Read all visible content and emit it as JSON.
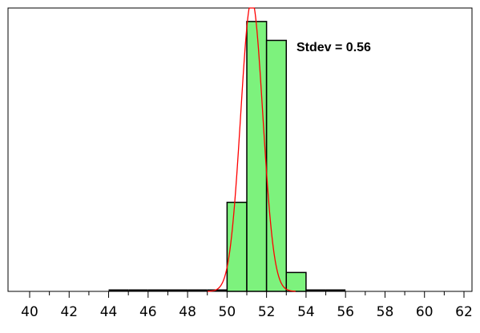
{
  "chart_data": {
    "type": "bar",
    "annotation": "Stdev = 0.56",
    "x_ticks": [
      40,
      42,
      44,
      46,
      48,
      50,
      52,
      54,
      56,
      58,
      60,
      62
    ],
    "xlim": [
      40,
      62
    ],
    "ylim": [
      0,
      1.05
    ],
    "bin_width": 1,
    "bins": [
      {
        "x0": 44,
        "value": 0.0
      },
      {
        "x0": 45,
        "value": 0.0
      },
      {
        "x0": 46,
        "value": 0.0
      },
      {
        "x0": 47,
        "value": 0.0
      },
      {
        "x0": 48,
        "value": 0.0
      },
      {
        "x0": 49,
        "value": 0.0
      },
      {
        "x0": 50,
        "value": 0.33
      },
      {
        "x0": 51,
        "value": 1.0
      },
      {
        "x0": 52,
        "value": 0.93
      },
      {
        "x0": 53,
        "value": 0.07
      },
      {
        "x0": 54,
        "value": 0.0
      },
      {
        "x0": 55,
        "value": 0.0
      }
    ],
    "curve": {
      "type": "normal",
      "mean": 51.25,
      "stdev": 0.56,
      "peak": 1.08
    },
    "colors": {
      "bar_fill": "#7df27d",
      "bar_stroke": "#000000",
      "curve": "#ff0000",
      "frame": "#000000"
    },
    "grid": false
  }
}
